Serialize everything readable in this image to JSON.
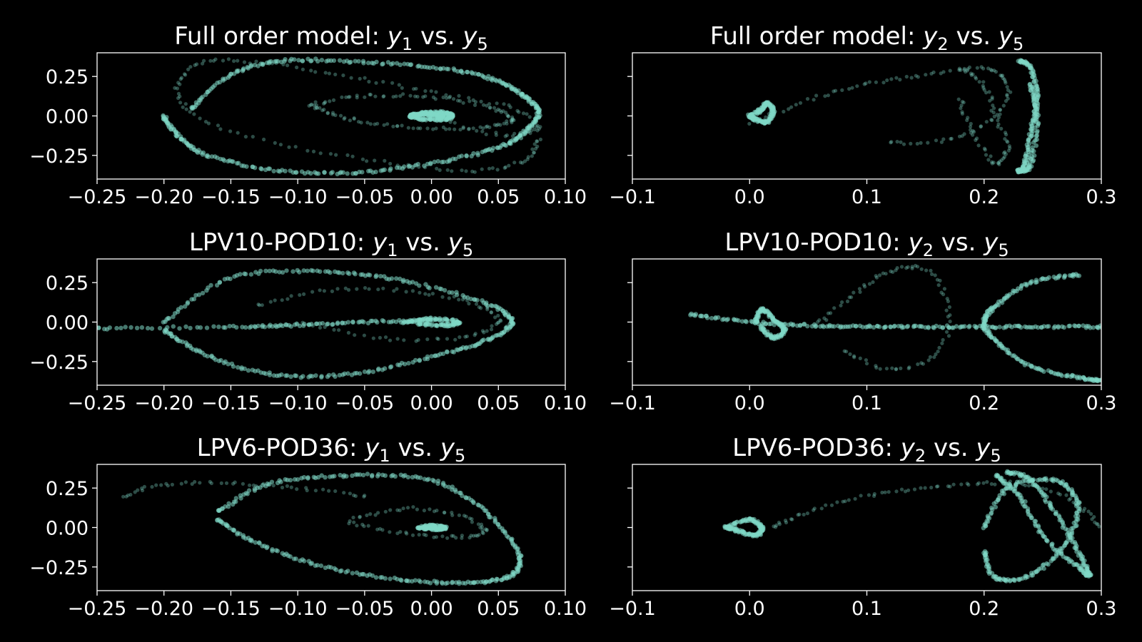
{
  "colors": {
    "background": "#000000",
    "marker": "#7fd8c6",
    "text": "#ffffff"
  },
  "chart_data": [
    {
      "type": "scatter",
      "title_pre": "Full order model: ",
      "xvar": "y",
      "xsub": "1",
      "yvar": "y",
      "ysub": "5",
      "xlim": [
        -0.25,
        0.1
      ],
      "ylim": [
        -0.4,
        0.4
      ],
      "xticks": [
        "−0.25",
        "−0.20",
        "−0.15",
        "−0.10",
        "−0.05",
        "0.00",
        "0.05",
        "0.10"
      ],
      "xtick_values": [
        -0.25,
        -0.2,
        -0.15,
        -0.1,
        -0.05,
        0.0,
        0.05,
        0.1
      ],
      "yticks": [
        "0.25",
        "0.00",
        "−0.25"
      ],
      "ytick_values": [
        0.25,
        0.0,
        -0.25
      ],
      "show_ytick_labels": true,
      "series": [
        {
          "x": [
            0.0,
            0.05,
            0.08,
            0.06,
            0.0,
            -0.06,
            -0.12,
            -0.17,
            -0.19,
            -0.17,
            -0.1,
            -0.03,
            0.03,
            0.07,
            0.08
          ],
          "y": [
            0.0,
            -0.12,
            -0.08,
            0.05,
            0.15,
            0.25,
            0.33,
            0.34,
            0.18,
            -0.03,
            -0.2,
            -0.3,
            -0.35,
            -0.28,
            -0.15
          ],
          "style": "sparse"
        },
        {
          "x": [
            -0.18,
            -0.15,
            -0.11,
            -0.05,
            0.01,
            0.05,
            0.07,
            0.08,
            0.07,
            0.05,
            0.0,
            -0.06,
            -0.12,
            -0.17,
            -0.19,
            -0.2
          ],
          "y": [
            0.04,
            0.26,
            0.35,
            0.34,
            0.3,
            0.22,
            0.12,
            0.02,
            -0.1,
            -0.2,
            -0.3,
            -0.36,
            -0.34,
            -0.24,
            -0.12,
            0.0
          ],
          "style": "dense"
        },
        {
          "x": [
            -0.09,
            -0.06,
            -0.02,
            0.02,
            0.05,
            0.06,
            0.04,
            0.0,
            -0.04,
            -0.07,
            -0.09
          ],
          "y": [
            0.07,
            0.12,
            0.13,
            0.1,
            0.04,
            -0.03,
            -0.07,
            -0.08,
            -0.05,
            0.0,
            0.07
          ],
          "style": "sparse"
        },
        {
          "x": [
            -0.015,
            -0.005,
            0.01,
            0.015,
            0.01,
            -0.005,
            -0.015,
            -0.01,
            0.0,
            0.008,
            0.005
          ],
          "y": [
            0.0,
            0.02,
            0.02,
            0.0,
            -0.02,
            -0.02,
            0.0,
            0.01,
            0.012,
            0.0,
            -0.005
          ],
          "style": "dense"
        }
      ]
    },
    {
      "type": "scatter",
      "title_pre": "Full order model: ",
      "xvar": "y",
      "xsub": "2",
      "yvar": "y",
      "ysub": "5",
      "xlim": [
        -0.1,
        0.3
      ],
      "ylim": [
        -0.4,
        0.4
      ],
      "xticks": [
        "−0.1",
        "0.0",
        "0.1",
        "0.2",
        "0.3"
      ],
      "xtick_values": [
        -0.1,
        0.0,
        0.1,
        0.2,
        0.3
      ],
      "yticks": [
        "0.25",
        "0.00",
        "−0.25"
      ],
      "ytick_values": [
        0.25,
        0.0,
        -0.25
      ],
      "show_ytick_labels": false,
      "series": [
        {
          "x": [
            0.0,
            0.01,
            0.015,
            0.02,
            0.015,
            0.005,
            0.0
          ],
          "y": [
            0.0,
            0.04,
            0.08,
            0.03,
            -0.04,
            -0.02,
            0.0
          ],
          "style": "dense"
        },
        {
          "x": [
            0.0,
            0.05,
            0.1,
            0.15,
            0.2,
            0.22,
            0.21,
            0.17,
            0.12
          ],
          "y": [
            -0.05,
            0.1,
            0.2,
            0.26,
            0.3,
            0.2,
            0.0,
            -0.15,
            -0.17
          ],
          "style": "sparse"
        },
        {
          "x": [
            0.18,
            0.2,
            0.21,
            0.22,
            0.21,
            0.19,
            0.18
          ],
          "y": [
            0.3,
            0.2,
            0.0,
            -0.2,
            -0.3,
            -0.1,
            0.1
          ],
          "style": "sparse"
        },
        {
          "x": [
            0.23,
            0.24,
            0.245,
            0.24,
            0.235,
            0.23,
            0.24,
            0.245,
            0.24
          ],
          "y": [
            0.35,
            0.3,
            0.1,
            -0.1,
            -0.3,
            -0.35,
            -0.3,
            0.0,
            0.2
          ],
          "style": "dense"
        }
      ]
    },
    {
      "type": "scatter",
      "title_pre": "LPV10-POD10: ",
      "xvar": "y",
      "xsub": "1",
      "yvar": "y",
      "ysub": "5",
      "xlim": [
        -0.25,
        0.1
      ],
      "ylim": [
        -0.4,
        0.4
      ],
      "xticks": [
        "−0.25",
        "−0.20",
        "−0.15",
        "−0.10",
        "−0.05",
        "0.00",
        "0.05",
        "0.10"
      ],
      "xtick_values": [
        -0.25,
        -0.2,
        -0.15,
        -0.1,
        -0.05,
        0.0,
        0.05,
        0.1
      ],
      "yticks": [
        "0.25",
        "0.00",
        "−0.25"
      ],
      "ytick_values": [
        0.25,
        0.0,
        -0.25
      ],
      "show_ytick_labels": true,
      "series": [
        {
          "x": [
            -0.25,
            -0.15,
            -0.1,
            -0.05,
            0.0
          ],
          "y": [
            -0.04,
            -0.03,
            -0.02,
            0.0,
            0.01
          ],
          "style": "dense"
        },
        {
          "x": [
            -0.2,
            -0.15,
            -0.08,
            -0.02,
            0.04,
            0.06,
            0.04,
            0.0,
            -0.06,
            -0.12,
            -0.17,
            -0.2
          ],
          "y": [
            0.0,
            0.28,
            0.32,
            0.26,
            0.12,
            0.0,
            -0.12,
            -0.22,
            -0.33,
            -0.33,
            -0.2,
            -0.05
          ],
          "style": "dense"
        },
        {
          "x": [
            -0.13,
            -0.08,
            -0.02,
            0.03,
            0.05,
            0.02,
            -0.04,
            -0.1
          ],
          "y": [
            0.1,
            0.2,
            0.2,
            0.12,
            0.0,
            -0.1,
            -0.1,
            0.0
          ],
          "style": "sparse"
        },
        {
          "x": [
            -0.02,
            0.0,
            0.02,
            0.01,
            -0.01
          ],
          "y": [
            0.0,
            0.02,
            0.0,
            -0.02,
            -0.01
          ],
          "style": "dense"
        }
      ]
    },
    {
      "type": "scatter",
      "title_pre": "LPV10-POD10: ",
      "xvar": "y",
      "xsub": "2",
      "yvar": "y",
      "ysub": "5",
      "xlim": [
        -0.1,
        0.3
      ],
      "ylim": [
        -0.4,
        0.4
      ],
      "xticks": [
        "−0.1",
        "0.0",
        "0.1",
        "0.2",
        "0.3"
      ],
      "xtick_values": [
        -0.1,
        0.0,
        0.1,
        0.2,
        0.3
      ],
      "yticks": [
        "0.25",
        "0.00",
        "−0.25"
      ],
      "ytick_values": [
        0.25,
        0.0,
        -0.25
      ],
      "show_ytick_labels": false,
      "series": [
        {
          "x": [
            -0.05,
            0.0,
            0.05,
            0.1,
            0.15,
            0.2,
            0.25,
            0.3
          ],
          "y": [
            0.05,
            0.0,
            -0.02,
            -0.03,
            -0.03,
            -0.03,
            -0.03,
            -0.03
          ],
          "style": "dense"
        },
        {
          "x": [
            0.005,
            0.01,
            0.02,
            0.03,
            0.02,
            0.01
          ],
          "y": [
            0.0,
            0.08,
            0.02,
            -0.05,
            -0.1,
            -0.03
          ],
          "style": "dense"
        },
        {
          "x": [
            0.06,
            0.09,
            0.12,
            0.15,
            0.17,
            0.16,
            0.12,
            0.08
          ],
          "y": [
            0.0,
            0.18,
            0.32,
            0.33,
            0.1,
            -0.2,
            -0.3,
            -0.18
          ],
          "style": "sparse"
        },
        {
          "x": [
            0.28,
            0.24,
            0.21,
            0.2,
            0.21,
            0.24,
            0.28,
            0.3
          ],
          "y": [
            0.3,
            0.25,
            0.1,
            0.0,
            -0.12,
            -0.28,
            -0.35,
            -0.37
          ],
          "style": "dense"
        }
      ]
    },
    {
      "type": "scatter",
      "title_pre": "LPV6-POD36: ",
      "xvar": "y",
      "xsub": "1",
      "yvar": "y",
      "ysub": "5",
      "xlim": [
        -0.25,
        0.1
      ],
      "ylim": [
        -0.4,
        0.4
      ],
      "xticks": [
        "−0.25",
        "−0.20",
        "−0.15",
        "−0.10",
        "−0.05",
        "0.00",
        "0.05",
        "0.10"
      ],
      "xtick_values": [
        -0.25,
        -0.2,
        -0.15,
        -0.1,
        -0.05,
        0.0,
        0.05,
        0.1
      ],
      "yticks": [
        "0.25",
        "0.00",
        "−0.25"
      ],
      "ytick_values": [
        0.25,
        0.0,
        -0.25
      ],
      "show_ytick_labels": true,
      "series": [
        {
          "x": [
            -0.23,
            -0.2,
            -0.15,
            -0.1,
            -0.05
          ],
          "y": [
            0.2,
            0.27,
            0.28,
            0.25,
            0.2
          ],
          "style": "sparse"
        },
        {
          "x": [
            -0.16,
            -0.12,
            -0.06,
            0.0,
            0.04,
            0.065,
            0.06,
            0.03,
            -0.02,
            -0.08,
            -0.13,
            -0.16
          ],
          "y": [
            0.1,
            0.28,
            0.33,
            0.3,
            0.1,
            -0.15,
            -0.3,
            -0.35,
            -0.33,
            -0.25,
            -0.1,
            0.05
          ],
          "style": "dense"
        },
        {
          "x": [
            -0.06,
            -0.02,
            0.02,
            0.04,
            0.02,
            -0.02,
            -0.06
          ],
          "y": [
            0.05,
            0.12,
            0.08,
            -0.02,
            -0.06,
            -0.04,
            0.03
          ],
          "style": "sparse"
        },
        {
          "x": [
            -0.01,
            0.0,
            0.01,
            0.005,
            -0.005
          ],
          "y": [
            0.0,
            0.01,
            0.0,
            -0.01,
            -0.005
          ],
          "style": "dense"
        }
      ]
    },
    {
      "type": "scatter",
      "title_pre": "LPV6-POD36: ",
      "xvar": "y",
      "xsub": "2",
      "yvar": "y",
      "ysub": "5",
      "xlim": [
        -0.1,
        0.3
      ],
      "ylim": [
        -0.4,
        0.4
      ],
      "xticks": [
        "−0.1",
        "0.0",
        "0.1",
        "0.2",
        "0.3"
      ],
      "xtick_values": [
        -0.1,
        0.0,
        0.1,
        0.2,
        0.3
      ],
      "yticks": [
        "0.25",
        "0.00",
        "−0.25"
      ],
      "ytick_values": [
        0.25,
        0.0,
        -0.25
      ],
      "show_ytick_labels": false,
      "series": [
        {
          "x": [
            -0.02,
            0.0,
            0.01,
            0.005,
            -0.01,
            -0.02
          ],
          "y": [
            0.0,
            0.05,
            0.0,
            -0.05,
            -0.02,
            0.0
          ],
          "style": "dense"
        },
        {
          "x": [
            0.02,
            0.05,
            0.1,
            0.15,
            0.2,
            0.24,
            0.28,
            0.3
          ],
          "y": [
            0.0,
            0.1,
            0.2,
            0.25,
            0.28,
            0.27,
            0.15,
            0.0
          ],
          "style": "sparse"
        },
        {
          "x": [
            0.22,
            0.24,
            0.26,
            0.28,
            0.29,
            0.28,
            0.25,
            0.23,
            0.21
          ],
          "y": [
            0.35,
            0.3,
            0.1,
            -0.15,
            -0.3,
            -0.25,
            -0.05,
            0.2,
            0.33
          ],
          "style": "dense"
        },
        {
          "x": [
            0.2,
            0.22,
            0.26,
            0.28,
            0.27,
            0.24,
            0.21,
            0.2
          ],
          "y": [
            0.0,
            0.25,
            0.3,
            0.15,
            -0.1,
            -0.3,
            -0.32,
            -0.15
          ],
          "style": "dense"
        }
      ]
    }
  ]
}
